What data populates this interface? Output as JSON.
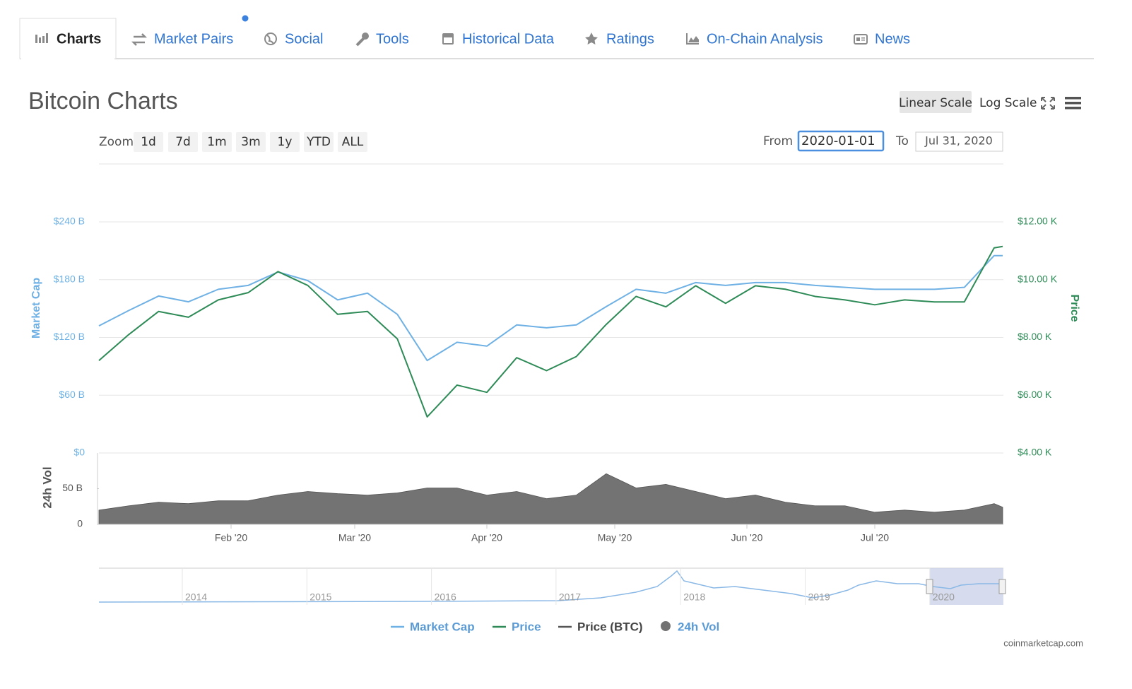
{
  "tabs": [
    "Charts",
    "Market Pairs",
    "Social",
    "Tools",
    "Historical Data",
    "Ratings",
    "On-Chain Analysis",
    "News"
  ],
  "controls": {
    "linear_scale": "Linear Scale",
    "log_scale": "Log Scale",
    "zoom_label": "Zoom",
    "zoom_buttons": [
      "1d",
      "7d",
      "1m",
      "3m",
      "1y",
      "YTD",
      "ALL"
    ],
    "from_label": "From",
    "from_value": "2020-01-01",
    "to_label": "To",
    "to_value": "Jul 31, 2020"
  },
  "chart_data": {
    "type": "line",
    "title": "Bitcoin Charts",
    "y_label": "Market Cap",
    "y2_label": "Price",
    "y3_label": "24h Vol",
    "x": [
      "2020-01-01",
      "2020-01-08",
      "2020-01-15",
      "2020-01-22",
      "2020-01-29",
      "2020-02-05",
      "2020-02-12",
      "2020-02-19",
      "2020-02-26",
      "2020-03-04",
      "2020-03-11",
      "2020-03-18",
      "2020-03-25",
      "2020-04-01",
      "2020-04-08",
      "2020-04-15",
      "2020-04-22",
      "2020-04-29",
      "2020-05-06",
      "2020-05-13",
      "2020-05-20",
      "2020-05-27",
      "2020-06-03",
      "2020-06-10",
      "2020-06-17",
      "2020-06-24",
      "2020-07-01",
      "2020-07-08",
      "2020-07-15",
      "2020-07-22",
      "2020-07-29",
      "2020-07-31"
    ],
    "xlim": [
      "2020-01-01",
      "2020-07-31"
    ],
    "xticks": [
      {
        "value": "2020-02-01",
        "label": "Feb '20"
      },
      {
        "value": "2020-03-01",
        "label": "Mar '20"
      },
      {
        "value": "2020-04-01",
        "label": "Apr '20"
      },
      {
        "value": "2020-05-01",
        "label": "May '20"
      },
      {
        "value": "2020-06-01",
        "label": "Jun '20"
      },
      {
        "value": "2020-07-01",
        "label": "Jul '20"
      }
    ],
    "ylim": [
      0,
      240
    ],
    "yticks": [
      {
        "value": 0,
        "label": "$0"
      },
      {
        "value": 60,
        "label": "$60 B"
      },
      {
        "value": 120,
        "label": "$120 B"
      },
      {
        "value": 180,
        "label": "$180 B"
      },
      {
        "value": 240,
        "label": "$240 B"
      }
    ],
    "y2lim": [
      4,
      12
    ],
    "y2ticks": [
      {
        "value": 4,
        "label": "$4.00 K"
      },
      {
        "value": 6,
        "label": "$6.00 K"
      },
      {
        "value": 8,
        "label": "$8.00 K"
      },
      {
        "value": 10,
        "label": "$10.00 K"
      },
      {
        "value": 12,
        "label": "$12.00 K"
      }
    ],
    "y3lim": [
      0,
      100
    ],
    "y3ticks": [
      0,
      {
        "value": 50,
        "label": "50 B"
      }
    ],
    "grid": true,
    "series": [
      {
        "name": "Market Cap",
        "color": "#6fb1e4",
        "values": [
          132,
          148,
          163,
          157,
          170,
          174,
          188,
          179,
          159,
          166,
          144,
          96,
          115,
          111,
          133,
          130,
          133,
          152,
          170,
          166,
          177,
          174,
          177,
          177,
          174,
          172,
          170,
          170,
          170,
          172,
          205,
          205
        ]
      },
      {
        "name": "Price",
        "color": "#2e8b57",
        "axis": "y2",
        "values": [
          7.2,
          8.1,
          8.9,
          8.7,
          9.3,
          9.55,
          10.28,
          9.8,
          8.8,
          8.9,
          7.95,
          5.25,
          6.35,
          6.1,
          7.3,
          6.85,
          7.34,
          8.45,
          9.42,
          9.06,
          9.79,
          9.18,
          9.79,
          9.67,
          9.42,
          9.3,
          9.13,
          9.3,
          9.23,
          9.23,
          11.1,
          11.15
        ]
      },
      {
        "name": "Price (BTC)",
        "color": "#555555",
        "values": [
          null,
          null,
          null,
          null,
          null,
          null,
          null,
          null,
          null,
          null,
          null,
          null,
          null,
          null,
          null,
          null,
          null,
          null,
          null,
          null,
          null,
          null,
          null,
          null,
          null,
          null,
          null,
          null,
          null,
          null,
          null,
          null
        ]
      },
      {
        "name": "24h Vol",
        "color": "#737373",
        "axis": "y3",
        "values": [
          20,
          26,
          31,
          29,
          33,
          33,
          41,
          46,
          43,
          41,
          44,
          51,
          51,
          41,
          46,
          36,
          41,
          71,
          51,
          56,
          46,
          36,
          41,
          31,
          26,
          26,
          17,
          20,
          17,
          20,
          29,
          24
        ]
      }
    ],
    "navigator_labels": [
      "2014",
      "2015",
      "2016",
      "2017",
      "2018",
      "2019",
      "2020"
    ],
    "credit": "coinmarketcap.com"
  }
}
